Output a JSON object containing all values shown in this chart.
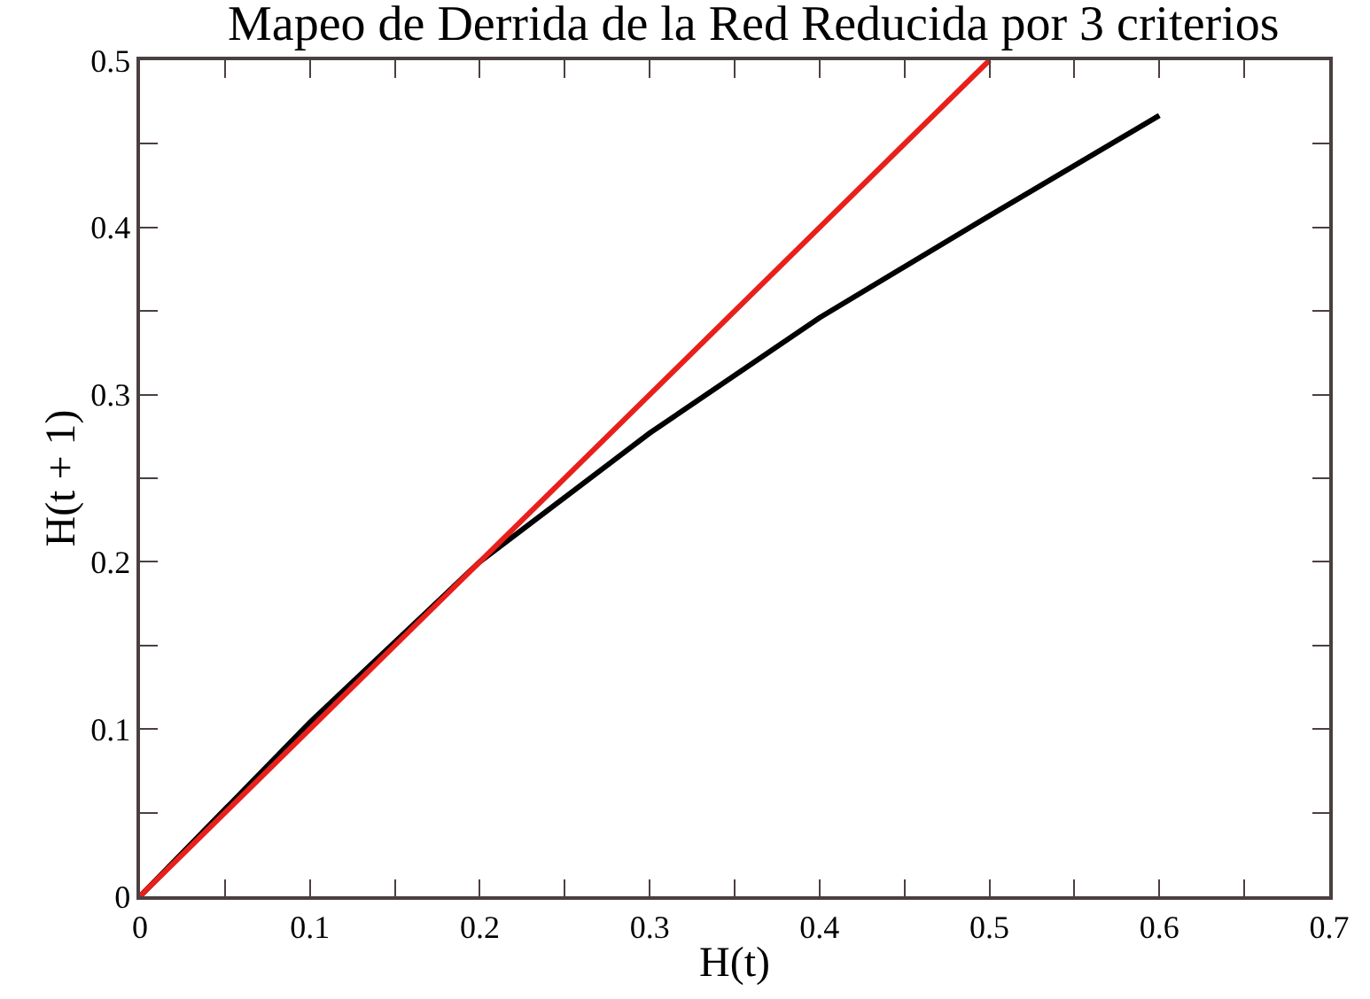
{
  "chart_data": {
    "type": "line",
    "title": "Mapeo de Derrida de la Red Reducida por 3 criterios",
    "xlabel": "H(t)",
    "ylabel": "H(t + 1)",
    "series": [
      {
        "color": "#000000",
        "x": [
          0,
          0.1,
          0.2,
          0.3,
          0.4,
          0.5,
          0.6
        ],
        "values": [
          0,
          0.104,
          0.2,
          0.277,
          0.346,
          0.407,
          0.467
        ]
      },
      {
        "color": "#e8201c",
        "x": [
          0,
          0.5
        ],
        "values": [
          0,
          0.5
        ]
      }
    ],
    "xlim": [
      0,
      0.7
    ],
    "ylim": [
      0,
      0.5
    ],
    "xticks": [
      0,
      {
        "value": 0.05,
        "label": null
      },
      0.1,
      {
        "value": 0.15,
        "label": null
      },
      0.2,
      {
        "value": 0.25,
        "label": null
      },
      0.3,
      {
        "value": 0.35,
        "label": null
      },
      0.4,
      {
        "value": 0.45,
        "label": null
      },
      0.5,
      {
        "value": 0.55,
        "label": null
      },
      0.6,
      {
        "value": 0.65,
        "label": null
      },
      0.7
    ],
    "yticks": [
      0,
      {
        "value": 0.05,
        "label": null
      },
      0.1,
      {
        "value": 0.15,
        "label": null
      },
      0.2,
      {
        "value": 0.25,
        "label": null
      },
      0.3,
      {
        "value": 0.35,
        "label": null
      },
      0.4,
      {
        "value": 0.45,
        "label": null
      },
      0.5
    ],
    "marker": "none",
    "line_style": "solid"
  }
}
